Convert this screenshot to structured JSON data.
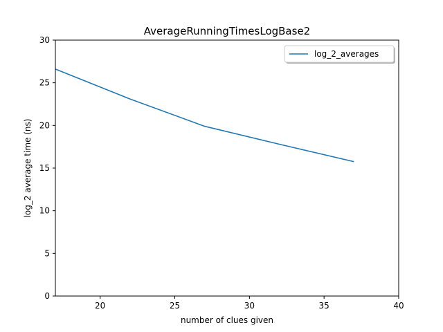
{
  "chart_data": {
    "type": "line",
    "title": "AverageRunningTimesLogBase2",
    "xlabel": "number of clues given",
    "ylabel": "log_2 average time (ns)",
    "xlim": [
      17,
      40
    ],
    "ylim": [
      0,
      30
    ],
    "xticks": [
      20,
      25,
      30,
      35,
      40
    ],
    "yticks": [
      0,
      5,
      10,
      15,
      20,
      25,
      30
    ],
    "grid": false,
    "legend_position": "top-right",
    "series": [
      {
        "name": "log_2_averages",
        "color": "#1f77b4",
        "x": [
          17,
          22,
          27,
          32,
          37
        ],
        "y": [
          26.6,
          23.1,
          19.9,
          17.8,
          15.75
        ]
      }
    ]
  }
}
